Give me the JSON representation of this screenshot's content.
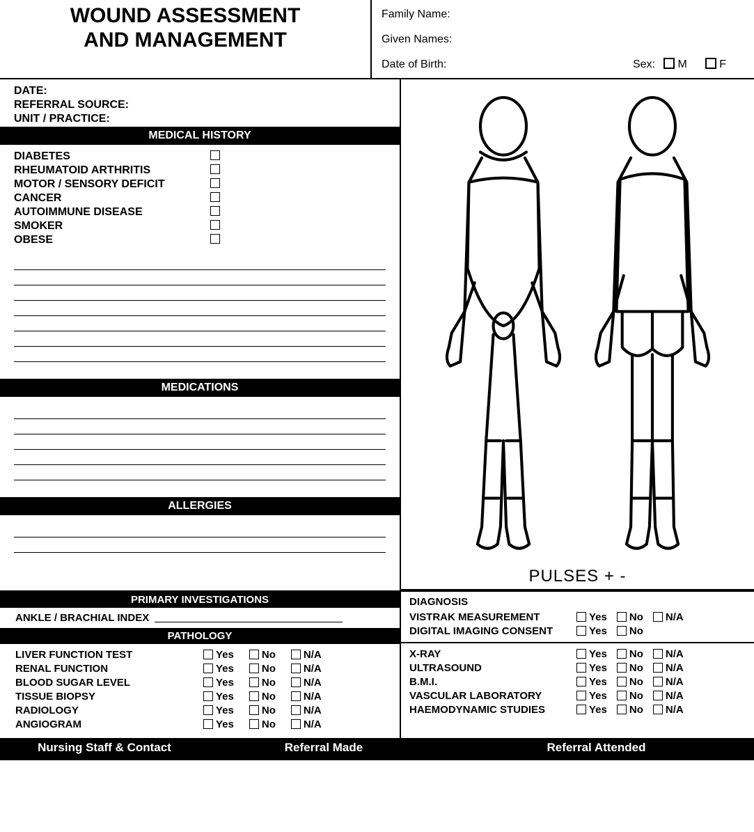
{
  "title_line1": "WOUND ASSESSMENT",
  "title_line2": "AND MANAGEMENT",
  "patient": {
    "family_label": "Family Name:",
    "given_label": "Given Names:",
    "dob_label": "Date of Birth:",
    "sex_label": "Sex:",
    "sex_m": "M",
    "sex_f": "F"
  },
  "meta": {
    "date": "DATE:",
    "ref": "REFERRAL SOURCE:",
    "unit": "UNIT / PRACTICE:"
  },
  "sections": {
    "medhist": "MEDICAL HISTORY",
    "medications": "MEDICATIONS",
    "allergies": "ALLERGIES",
    "primary": "PRIMARY INVESTIGATIONS",
    "pathology": "PATHOLOGY"
  },
  "hist_items": [
    "DIABETES",
    "RHEUMATOID ARTHRITIS",
    "MOTOR / SENSORY DEFICIT",
    "CANCER",
    "AUTOIMMUNE DISEASE",
    "SMOKER",
    "OBESE"
  ],
  "pulses": "PULSES + -",
  "abi_label": "ANKLE / BRACHIAL INDEX",
  "pathology_rows": [
    "LIVER FUNCTION TEST",
    "RENAL FUNCTION",
    "BLOOD SUGAR LEVEL",
    "TISSUE BIOPSY",
    "RADIOLOGY",
    "ANGIOGRAM"
  ],
  "diag_header": "DIAGNOSIS",
  "diag_top": [
    {
      "label": "VISTRAK MEASUREMENT",
      "opts": [
        "Yes",
        "No",
        "N/A"
      ]
    },
    {
      "label": "DIGITAL IMAGING CONSENT",
      "opts": [
        "Yes",
        "No"
      ]
    }
  ],
  "diag_rows": [
    "X-RAY",
    "ULTRASOUND",
    "B.M.I.",
    "VASCULAR LABORATORY",
    "HAEMODYNAMIC STUDIES"
  ],
  "opts": {
    "yes": "Yes",
    "no": "No",
    "na": "N/A"
  },
  "blank_lines": {
    "hist": 7,
    "meds": 5,
    "allergies": 2
  },
  "footer": {
    "c1": "Nursing Staff  & Contact",
    "c2": "Referral Made",
    "c3": "Referral Attended"
  },
  "colors": {
    "text": "#000000",
    "bg": "#ffffff",
    "bar_bg": "#000000",
    "bar_fg": "#ffffff",
    "line": "#000000"
  }
}
